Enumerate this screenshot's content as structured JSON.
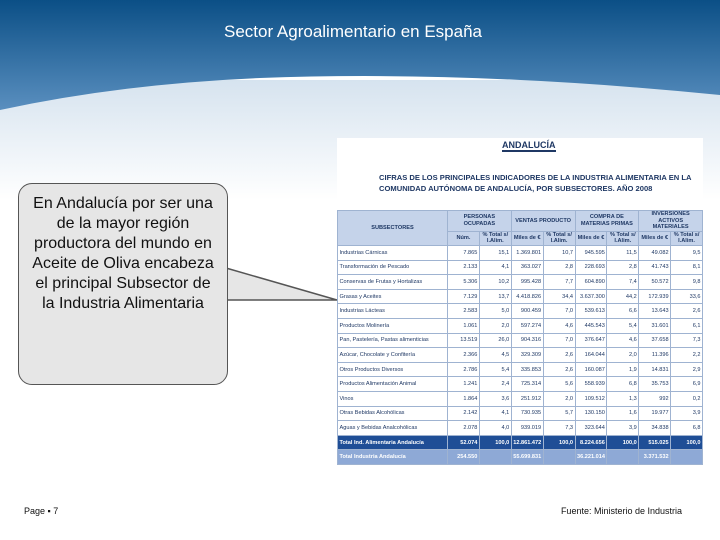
{
  "header": {
    "title": "Sector Agroalimentario en España"
  },
  "callout": {
    "text": "En Andalucía  por ser una  de la mayor región productora del mundo en Aceite  de Oliva encabeza el principal Subsector de la Industria Alimentaria"
  },
  "table": {
    "region": "ANDALUCÍA",
    "caption": "CIFRAS DE LOS PRINCIPALES INDICADORES DE LA INDUSTRIA ALIMENTARIA EN LA COMUNIDAD AUTÓNOMA DE ANDALUCÍA, POR SUBSECTORES. AÑO 2008",
    "row_header": "SUBSECTORES",
    "groups": [
      "PERSONAS OCUPADAS",
      "VENTAS PRODUCTO",
      "COMPRA DE MATERIAS PRIMAS",
      "INVERSIONES ACTIVOS MATERIALES"
    ],
    "subheaders": [
      "Núm.",
      "% Total s/ I.Alim.",
      "Miles de €",
      "% Total s/ I.Alim.",
      "Miles de €",
      "% Total s/ I.Alim.",
      "Miles de €",
      "% Total s/ I.Alim."
    ],
    "rows": [
      {
        "name": "Industrias Cárnicas",
        "values": [
          "7.865",
          "15,1",
          "1.369.801",
          "10,7",
          "945.595",
          "11,5",
          "49.082",
          "9,5"
        ]
      },
      {
        "name": "Transformación de Pescado",
        "values": [
          "2.133",
          "4,1",
          "363.027",
          "2,8",
          "228.693",
          "2,8",
          "41.743",
          "8,1"
        ]
      },
      {
        "name": "Conservas de Frutas y Hortalizas",
        "values": [
          "5.306",
          "10,2",
          "995.428",
          "7,7",
          "604.890",
          "7,4",
          "50.572",
          "9,8"
        ]
      },
      {
        "name": "Grasas y Aceites",
        "values": [
          "7.129",
          "13,7",
          "4.418.826",
          "34,4",
          "3.637.300",
          "44,2",
          "172.939",
          "33,6"
        ]
      },
      {
        "name": "Industrias Lácteas",
        "values": [
          "2.583",
          "5,0",
          "900.459",
          "7,0",
          "539.613",
          "6,6",
          "13.643",
          "2,6"
        ]
      },
      {
        "name": "Productos Molinería",
        "values": [
          "1.061",
          "2,0",
          "597.274",
          "4,6",
          "445.543",
          "5,4",
          "31.601",
          "6,1"
        ]
      },
      {
        "name": "Pan, Pastelería, Pastas alimenticias",
        "values": [
          "13.519",
          "26,0",
          "904.316",
          "7,0",
          "376.647",
          "4,6",
          "37.658",
          "7,3"
        ]
      },
      {
        "name": "Azúcar, Chocolate y Confitería",
        "values": [
          "2.366",
          "4,5",
          "329.309",
          "2,6",
          "164.044",
          "2,0",
          "11.396",
          "2,2"
        ]
      },
      {
        "name": "Otros Productos Diversos",
        "values": [
          "2.786",
          "5,4",
          "335.853",
          "2,6",
          "160.087",
          "1,9",
          "14.831",
          "2,9"
        ]
      },
      {
        "name": "Productos Alimentación Animal",
        "values": [
          "1.241",
          "2,4",
          "725.314",
          "5,6",
          "558.939",
          "6,8",
          "35.753",
          "6,9"
        ]
      },
      {
        "name": "Vinos",
        "values": [
          "1.864",
          "3,6",
          "251.912",
          "2,0",
          "109.512",
          "1,3",
          "992",
          "0,2"
        ]
      },
      {
        "name": "Otras Bebidas Alcohólicas",
        "values": [
          "2.142",
          "4,1",
          "730.935",
          "5,7",
          "130.150",
          "1,6",
          "19.977",
          "3,9"
        ]
      },
      {
        "name": "Aguas y Bebidas Analcohólicas",
        "values": [
          "2.078",
          "4,0",
          "939.019",
          "7,3",
          "323.644",
          "3,9",
          "34.838",
          "6,8"
        ]
      },
      {
        "name": "Total Ind. Alimentaria Andalucía",
        "values": [
          "52.074",
          "100,0",
          "12.861.472",
          "100,0",
          "8.224.656",
          "100,0",
          "515.025",
          "100,0"
        ]
      },
      {
        "name": "Total Industria Andalucía",
        "values": [
          "254.550",
          null,
          "55.699.831",
          null,
          "36.221.014",
          null,
          "3.371.532",
          null
        ]
      }
    ]
  },
  "footer": {
    "page": "Page ▪ 7",
    "source": "Fuente: Ministerio de Industria"
  }
}
